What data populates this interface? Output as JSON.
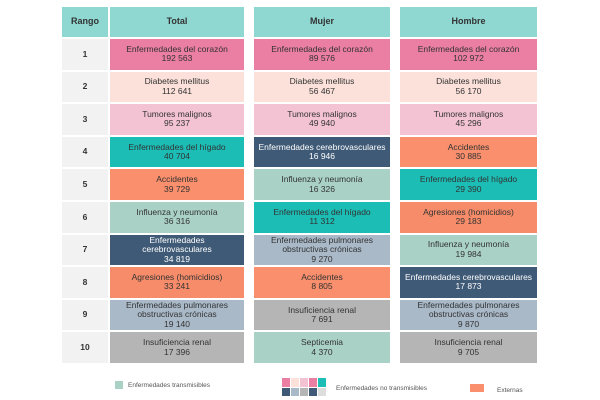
{
  "table": {
    "header": [
      "Rango",
      "Total",
      "Mujer",
      "Hombre"
    ],
    "rows": [
      {
        "rank": "1",
        "cells": [
          {
            "label": "Enfermedades del corazón",
            "value": "192 563",
            "color": "#ea7ea3"
          },
          {
            "label": "Enfermedades del corazón",
            "value": "89 576",
            "color": "#ea7ea3"
          },
          {
            "label": "Enfermedades del corazón",
            "value": "102 972",
            "color": "#ea7ea3"
          }
        ]
      },
      {
        "rank": "2",
        "cells": [
          {
            "label": "Diabetes mellitus",
            "value": "112 641",
            "color": "#fbe1da"
          },
          {
            "label": "Diabetes mellitus",
            "value": "56 467",
            "color": "#fbe1da"
          },
          {
            "label": "Diabetes mellitus",
            "value": "56 170",
            "color": "#fbe1da"
          }
        ]
      },
      {
        "rank": "3",
        "cells": [
          {
            "label": "Tumores malignos",
            "value": "95 237",
            "color": "#f3c3d3"
          },
          {
            "label": "Tumores malignos",
            "value": "49 940",
            "color": "#f3c3d3"
          },
          {
            "label": "Tumores malignos",
            "value": "45 296",
            "color": "#f3c3d3"
          }
        ]
      },
      {
        "rank": "4",
        "cells": [
          {
            "label": "Enfermedades del hígado",
            "value": "40 704",
            "color": "#1bbdb5"
          },
          {
            "label": "Enfermedades cerebrovasculares",
            "value": "16 946",
            "color": "#3f5a76"
          },
          {
            "label": "Accidentes",
            "value": "30 885",
            "color": "#f98f6c"
          }
        ]
      },
      {
        "rank": "5",
        "cells": [
          {
            "label": "Accidentes",
            "value": "39 729",
            "color": "#f98f6c"
          },
          {
            "label": "Influenza y neumonía",
            "value": "16 326",
            "color": "#a9d1c5"
          },
          {
            "label": "Enfermedades del hígado",
            "value": "29 390",
            "color": "#1bbdb5"
          }
        ]
      },
      {
        "rank": "6",
        "cells": [
          {
            "label": "Influenza y neumonía",
            "value": "36 316",
            "color": "#a9d1c5"
          },
          {
            "label": "Enfermedades del hígado",
            "value": "11 312",
            "color": "#1bbdb5"
          },
          {
            "label": "Agresiones (homicidios)",
            "value": "29 183",
            "color": "#f68c69"
          }
        ]
      },
      {
        "rank": "7",
        "cells": [
          {
            "label": "Enfermedades cerebrovasculares",
            "value": "34 819",
            "color": "#3f5a76"
          },
          {
            "label": "Enfermedades pulmonares obstructivas crónicas",
            "value": "9 270",
            "color": "#a9b9c8"
          },
          {
            "label": "Influenza y neumonía",
            "value": "19 984",
            "color": "#a9d1c5"
          }
        ]
      },
      {
        "rank": "8",
        "cells": [
          {
            "label": "Agresiones (homicidios)",
            "value": "33 241",
            "color": "#f68c69"
          },
          {
            "label": "Accidentes",
            "value": "8 805",
            "color": "#f98f6c"
          },
          {
            "label": "Enfermedades cerebrovasculares",
            "value": "17 873",
            "color": "#3f5a76"
          }
        ]
      },
      {
        "rank": "9",
        "cells": [
          {
            "label": "Enfermedades pulmonares obstructivas crónicas",
            "value": "19 140",
            "color": "#a9b9c8"
          },
          {
            "label": "Insuficiencia renal",
            "value": "7 691",
            "color": "#b5b5b5"
          },
          {
            "label": "Enfermedades pulmonares obstructivas crónicas",
            "value": "9 870",
            "color": "#a9b9c8"
          }
        ]
      },
      {
        "rank": "10",
        "cells": [
          {
            "label": "Insuficiencia renal",
            "value": "17 396",
            "color": "#b5b5b5"
          },
          {
            "label": "Septicemia",
            "value": "4 370",
            "color": "#a9d1c5"
          },
          {
            "label": "Insuficiencia renal",
            "value": "9 705",
            "color": "#b5b5b5"
          }
        ]
      }
    ]
  },
  "legend": [
    "Enfermedades transmisibles",
    "Enfermedades no transmisibles",
    "Externas"
  ]
}
